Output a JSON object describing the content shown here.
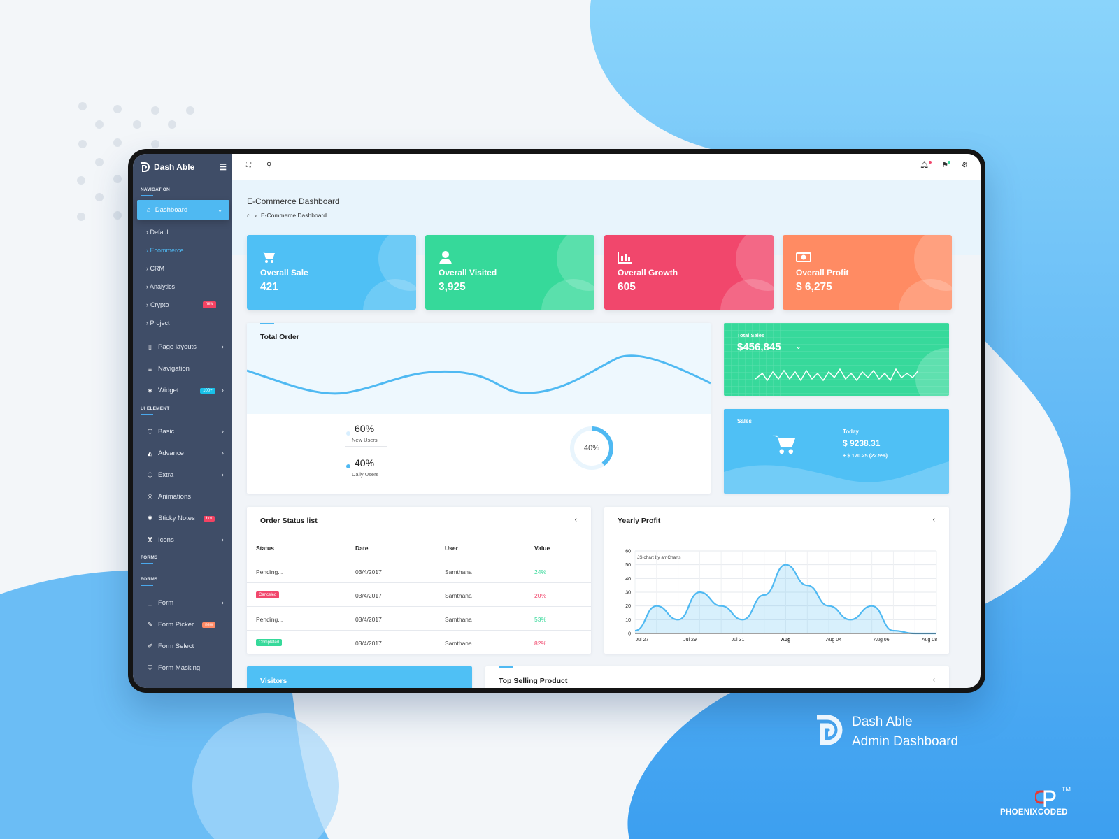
{
  "sidebar": {
    "brand": "Dash Able",
    "sections": {
      "navigation": "Navigation",
      "ui_element": "UI Element",
      "forms_a": "Forms",
      "forms_b": "Forms"
    },
    "active": "Dashboard",
    "sub_items": [
      "Default",
      "Ecommerce",
      "CRM",
      "Analytics",
      "Crypto",
      "Project"
    ],
    "crypto_badge": "new",
    "items": {
      "page_layouts": "Page layouts",
      "navigation": "Navigation",
      "widget": "Widget",
      "widget_badge": "100+",
      "basic": "Basic",
      "advance": "Advance",
      "extra": "Extra",
      "animations": "Animations",
      "sticky_notes": "Sticky Notes",
      "sticky_badge": "hot",
      "icons": "Icons",
      "form": "Form",
      "form_picker": "Form Picker",
      "form_picker_badge": "new",
      "form_select": "Form Select",
      "form_masking": "Form Masking"
    }
  },
  "page": {
    "title": "E-Commerce Dashboard",
    "breadcrumb": "E-Commerce Dashboard"
  },
  "stats": [
    {
      "label": "Overall Sale",
      "value": "421",
      "color": "#4fc0f5",
      "icon": "cart-icon"
    },
    {
      "label": "Overall Visited",
      "value": "3,925",
      "color": "#36d99a",
      "icon": "user-icon"
    },
    {
      "label": "Overall Growth",
      "value": "605",
      "color": "#f1476c",
      "icon": "bar-chart-icon"
    },
    {
      "label": "Overall Profit",
      "value": "$ 6,275",
      "color": "#ff8b63",
      "icon": "money-icon"
    }
  ],
  "total_order": {
    "title": "Total Order",
    "new_users_pct": "60%",
    "new_users_label": "New Users",
    "daily_users_pct": "40%",
    "daily_users_label": "Daily Users",
    "donut_label": "40%",
    "donut_value": 0.4
  },
  "total_sales": {
    "label": "Total Sales",
    "value": "$456,845"
  },
  "sales": {
    "label": "Sales",
    "today_label": "Today",
    "today_value": "$ 9238.31",
    "change": "+ $ 170.25 (22.5%)"
  },
  "order_status": {
    "title": "Order Status list",
    "columns": [
      "Status",
      "Date",
      "User",
      "Value"
    ],
    "rows": [
      {
        "status": "Pending...",
        "date": "03/4/2017",
        "user": "Samthana",
        "value": "24%"
      },
      {
        "status": "Canceled",
        "date": "03/4/2017",
        "user": "Samthana",
        "value": "20%"
      },
      {
        "status": "Pending...",
        "date": "03/4/2017",
        "user": "Samthana",
        "value": "53%"
      },
      {
        "status": "Completed",
        "date": "03/4/2017",
        "user": "Samthana",
        "value": "82%"
      }
    ]
  },
  "yearly_profit": {
    "title": "Yearly Profit",
    "credit": "JS chart by amCharts"
  },
  "chart_data": {
    "type": "area",
    "title": "Yearly Profit",
    "yticks": [
      "0",
      "10",
      "20",
      "30",
      "40",
      "50",
      "60"
    ],
    "ylim": [
      0,
      60
    ],
    "x_labels": [
      "Jul 27",
      "Jul 29",
      "Jul 31",
      "Aug",
      "Aug 04",
      "Aug 06",
      "Aug 08"
    ],
    "x": [
      0,
      1,
      2,
      3,
      4,
      5,
      6,
      7,
      8,
      9,
      10,
      11,
      12,
      13,
      14
    ],
    "values": [
      2,
      20,
      10,
      30,
      20,
      10,
      28,
      50,
      35,
      20,
      10,
      20,
      2,
      0,
      0
    ],
    "grid": true
  },
  "bottom": {
    "visitors": "Visitors",
    "top_selling": "Top Selling Product"
  },
  "footer_brand": {
    "line1": "Dash Able",
    "line2": "Admin Dashboard",
    "company": "PHOENIXCODED",
    "tm": "TM"
  }
}
